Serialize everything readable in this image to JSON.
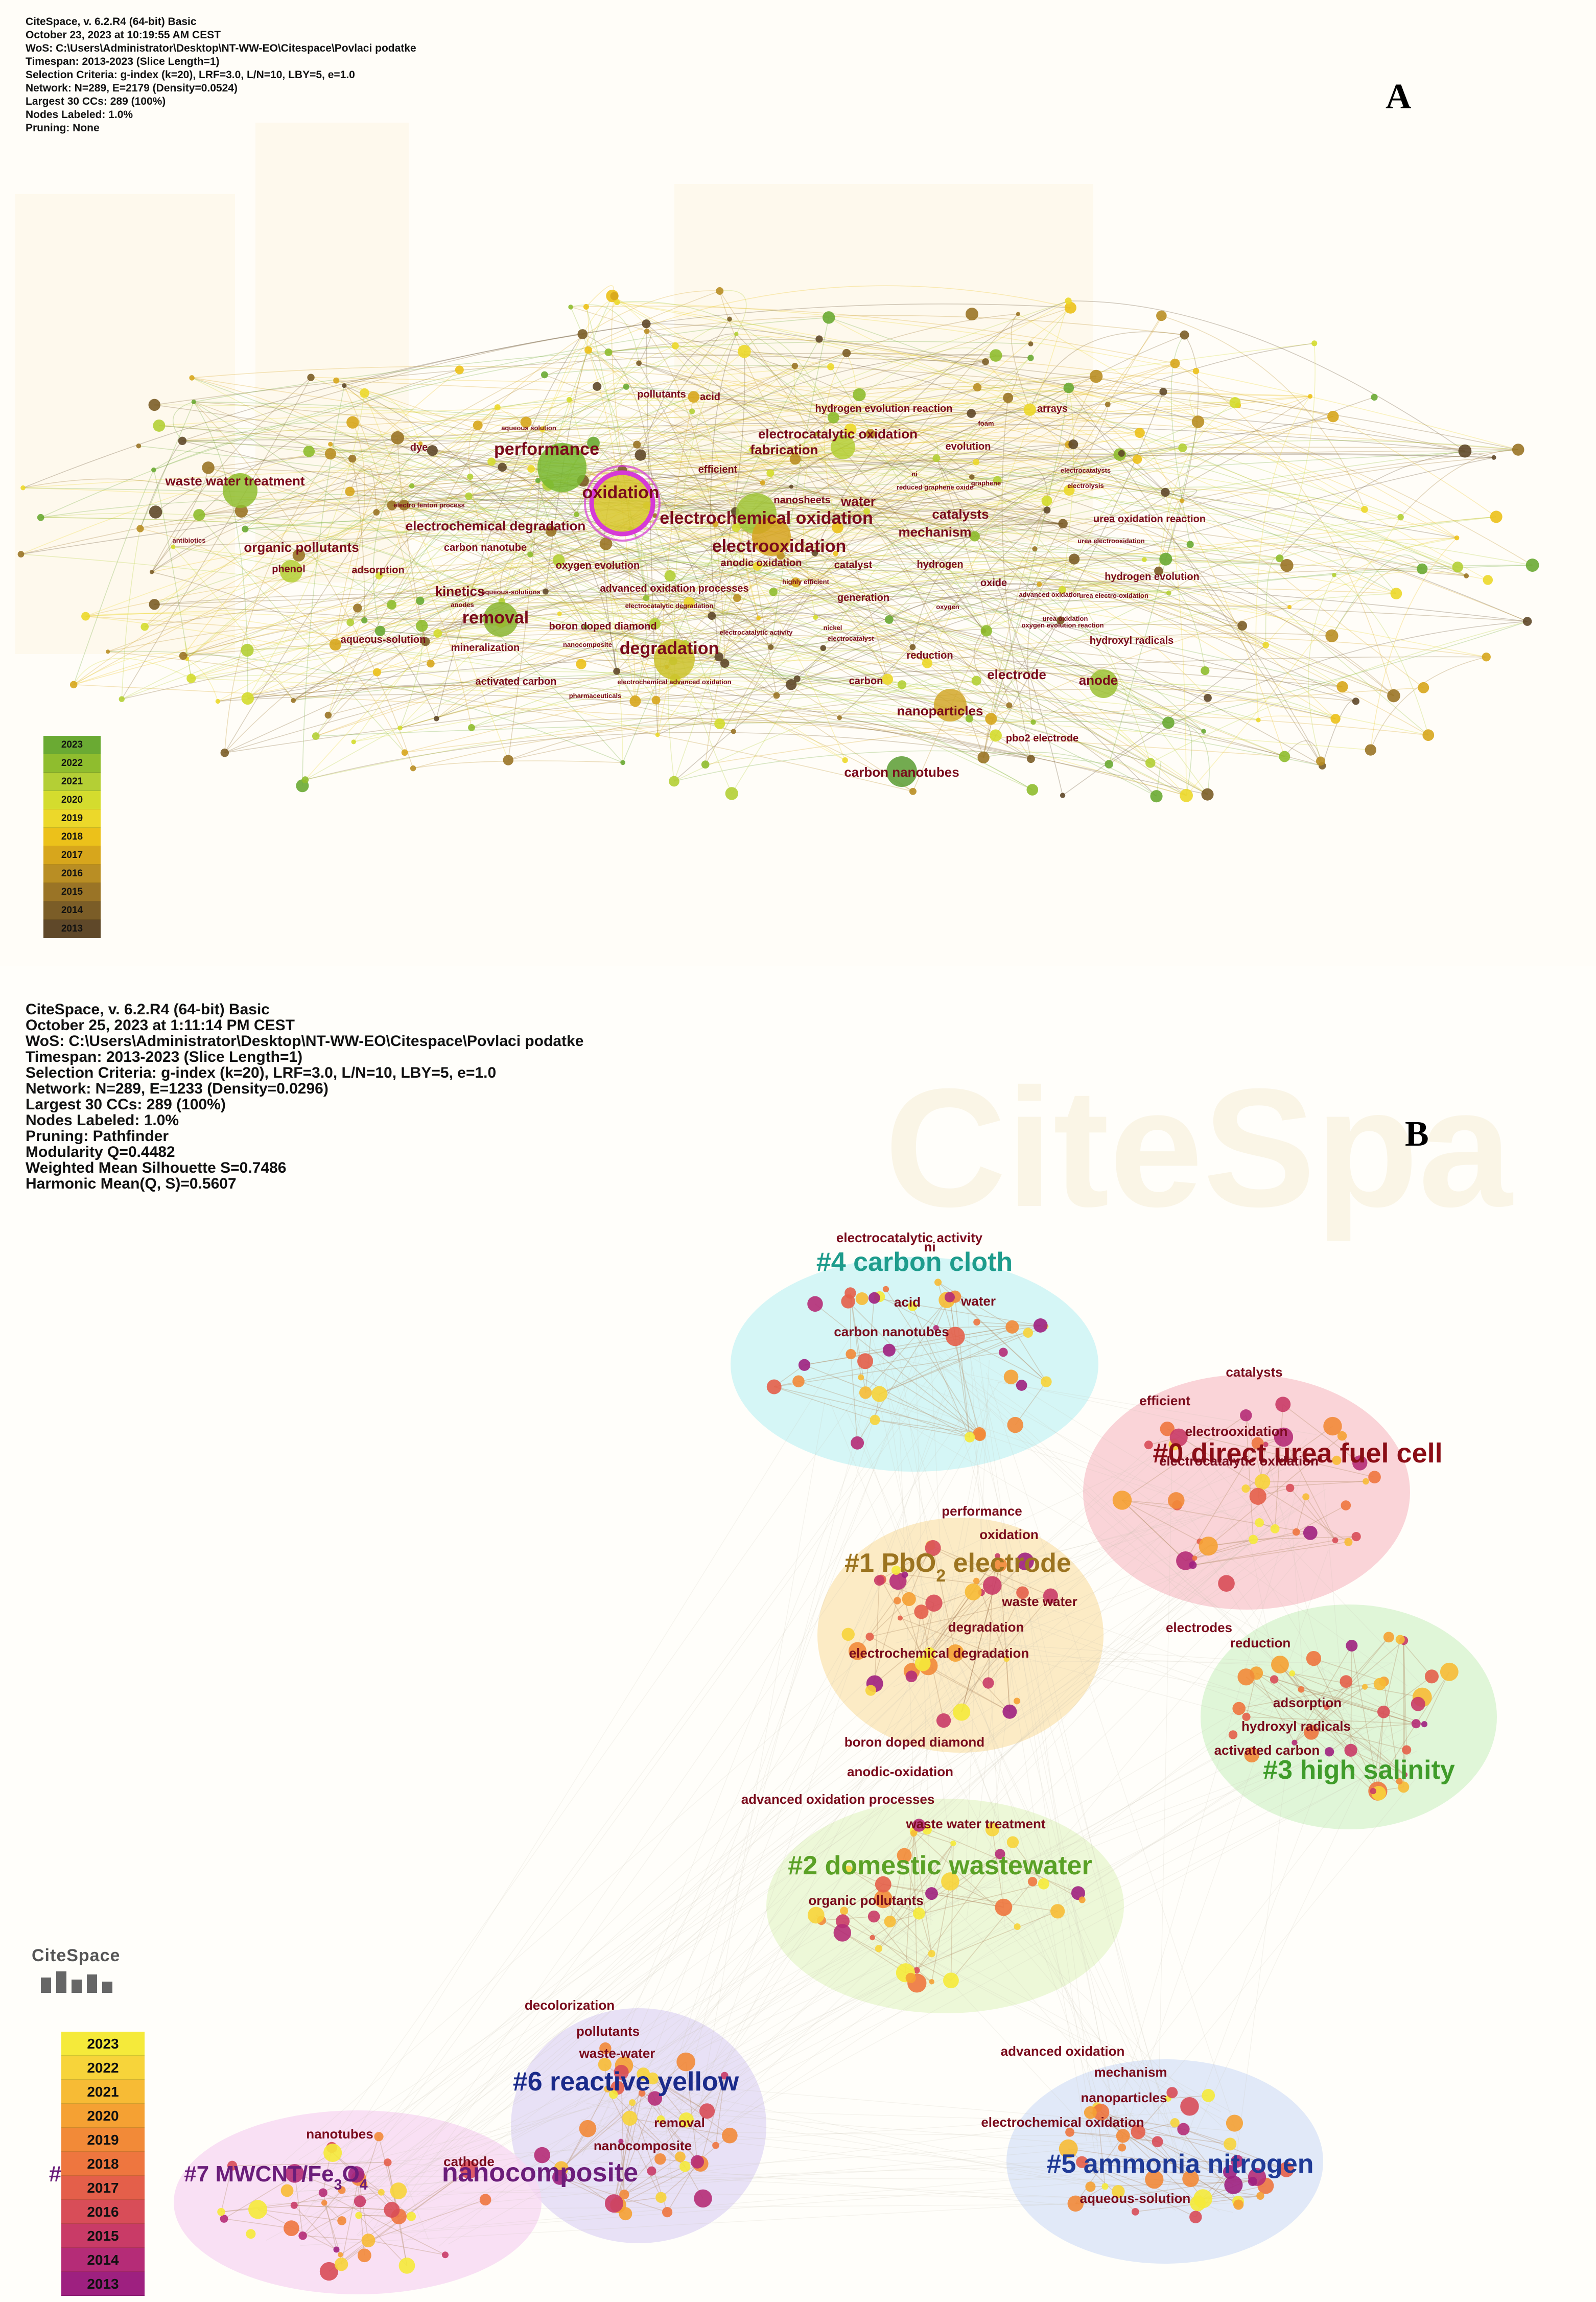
{
  "panel_a": {
    "letter": "A",
    "info_lines": [
      "CiteSpace, v. 6.2.R4 (64-bit) Basic",
      "October 23, 2023 at 10:19:55 AM CEST",
      "WoS: C:\\Users\\Administrator\\Desktop\\NT-WW-EO\\Citespace\\Povlaci podatke",
      "Timespan: 2013-2023 (Slice Length=1)",
      "Selection Criteria: g-index (k=20), LRF=3.0, L/N=10, LBY=5, e=1.0",
      "Network: N=289, E=2179 (Density=0.0524)",
      "Largest 30 CCs: 289 (100%)",
      "Nodes Labeled: 1.0%",
      "Pruning: None"
    ],
    "legend_years": [
      "2023",
      "2022",
      "2021",
      "2020",
      "2019",
      "2018",
      "2017",
      "2016",
      "2015",
      "2014",
      "2013"
    ],
    "legend_colors": [
      "#6aaa33",
      "#8fbd2e",
      "#b4cf35",
      "#d4dc2e",
      "#ecd82a",
      "#ecc11a",
      "#d7a61c",
      "#b98e24",
      "#9a7426",
      "#7b5d27",
      "#5f4829"
    ],
    "keywords": [
      {
        "text": "performance",
        "size": "l"
      },
      {
        "text": "oxidation",
        "size": "l"
      },
      {
        "text": "electrochemical oxidation",
        "size": "l"
      },
      {
        "text": "electrooxidation",
        "size": "l"
      },
      {
        "text": "removal",
        "size": "l"
      },
      {
        "text": "degradation",
        "size": "l"
      },
      {
        "text": "waste water treatment",
        "size": "m"
      },
      {
        "text": "electrochemical degradation",
        "size": "m"
      },
      {
        "text": "organic pollutants",
        "size": "m"
      },
      {
        "text": "nanoparticles",
        "size": "m"
      },
      {
        "text": "anode",
        "size": "m"
      },
      {
        "text": "carbon nanotubes",
        "size": "m"
      },
      {
        "text": "electrocatalytic oxidation",
        "size": "m"
      },
      {
        "text": "fabrication",
        "size": "m"
      },
      {
        "text": "catalysts",
        "size": "m"
      },
      {
        "text": "mechanism",
        "size": "m"
      },
      {
        "text": "kinetics",
        "size": "m"
      },
      {
        "text": "nanosheets",
        "size": "s"
      },
      {
        "text": "water",
        "size": "m"
      },
      {
        "text": "urea oxidation reaction",
        "size": "s"
      },
      {
        "text": "hydrogen evolution reaction",
        "size": "s"
      },
      {
        "text": "pollutants",
        "size": "s"
      },
      {
        "text": "acid",
        "size": "s"
      },
      {
        "text": "foam",
        "size": "xs"
      },
      {
        "text": "arrays",
        "size": "s"
      },
      {
        "text": "evolution",
        "size": "s"
      },
      {
        "text": "efficient",
        "size": "s"
      },
      {
        "text": "dye",
        "size": "s"
      },
      {
        "text": "aqueous solution",
        "size": "xs"
      },
      {
        "text": "electro fenton process",
        "size": "xs"
      },
      {
        "text": "carbon nanotube",
        "size": "s"
      },
      {
        "text": "antibiotics",
        "size": "xs"
      },
      {
        "text": "phenol",
        "size": "s"
      },
      {
        "text": "adsorption",
        "size": "s"
      },
      {
        "text": "oxygen evolution",
        "size": "s"
      },
      {
        "text": "anodic oxidation",
        "size": "s"
      },
      {
        "text": "catalyst",
        "size": "s"
      },
      {
        "text": "hydrogen",
        "size": "s"
      },
      {
        "text": "advanced oxidation processes",
        "size": "s"
      },
      {
        "text": "highly efficient",
        "size": "xs"
      },
      {
        "text": "generation",
        "size": "s"
      },
      {
        "text": "oxide",
        "size": "s"
      },
      {
        "text": "electrocatalytic degradation",
        "size": "xs"
      },
      {
        "text": "anodes",
        "size": "xs"
      },
      {
        "text": "aqueous-solutions",
        "size": "xs"
      },
      {
        "text": "aqueous-solution",
        "size": "s"
      },
      {
        "text": "boron doped diamond",
        "size": "s"
      },
      {
        "text": "mineralization",
        "size": "s"
      },
      {
        "text": "nanocomposite",
        "size": "xs"
      },
      {
        "text": "electrocatalytic activity",
        "size": "xs"
      },
      {
        "text": "electrocatalyst",
        "size": "xs"
      },
      {
        "text": "nickel",
        "size": "xs"
      },
      {
        "text": "reduction",
        "size": "s"
      },
      {
        "text": "activated carbon",
        "size": "s"
      },
      {
        "text": "electrochemical advanced oxidation",
        "size": "xs"
      },
      {
        "text": "pharmaceuticals",
        "size": "xs"
      },
      {
        "text": "carbon",
        "size": "s"
      },
      {
        "text": "electrode",
        "size": "m"
      },
      {
        "text": "hydroxyl radicals",
        "size": "s"
      },
      {
        "text": "hydrogen evolution",
        "size": "s"
      },
      {
        "text": "urea electrooxidation",
        "size": "xs"
      },
      {
        "text": "urea electro-oxidation",
        "size": "xs"
      },
      {
        "text": "urea oxidation",
        "size": "xs"
      },
      {
        "text": "oxygen evolution reaction",
        "size": "xs"
      },
      {
        "text": "advanced oxidation",
        "size": "xs"
      },
      {
        "text": "oxygen",
        "size": "xs"
      },
      {
        "text": "electrocatalysts",
        "size": "xs"
      },
      {
        "text": "electrolysis",
        "size": "xs"
      },
      {
        "text": "reduced graphene oxide",
        "size": "xs"
      },
      {
        "text": "graphene",
        "size": "xs"
      },
      {
        "text": "ni",
        "size": "xs"
      },
      {
        "text": "pbo2 electrode",
        "size": "s"
      }
    ]
  },
  "panel_b": {
    "letter": "B",
    "info_lines": [
      "CiteSpace, v. 6.2.R4 (64-bit) Basic",
      "October 25, 2023 at 1:11:14 PM CEST",
      "WoS: C:\\Users\\Administrator\\Desktop\\NT-WW-EO\\Citespace\\Povlaci podatke",
      "Timespan: 2013-2023 (Slice Length=1)",
      "Selection Criteria: g-index (k=20), LRF=3.0, L/N=10, LBY=5, e=1.0",
      "Network: N=289, E=1233 (Density=0.0296)",
      "Largest 30 CCs: 289 (100%)",
      "Nodes Labeled: 1.0%",
      "Pruning: Pathfinder",
      "Modularity Q=0.4482",
      "Weighted Mean Silhouette S=0.7486",
      "Harmonic Mean(Q, S)=0.5607"
    ],
    "logo": "CiteSpace",
    "legend_years": [
      "2023",
      "2022",
      "2021",
      "2020",
      "2019",
      "2018",
      "2017",
      "2016",
      "2015",
      "2014",
      "2013"
    ],
    "legend_colors": [
      "#f5ea3a",
      "#f7d43a",
      "#f7bb35",
      "#f5a133",
      "#f28a38",
      "#ee763f",
      "#e45f4a",
      "#d84d58",
      "#c93b67",
      "#b52c77",
      "#9e2080"
    ],
    "clusters": [
      {
        "label": "#0 direct urea fuel cell",
        "color": "#8b0d16",
        "keywords": [
          "catalysts",
          "efficient",
          "electrooxidation",
          "electrocatalytic oxidation"
        ]
      },
      {
        "label": "#1 PbO",
        "sub": "2",
        "label_rest": " electrode",
        "color": "#9c7420",
        "keywords": [
          "performance",
          "oxidation",
          "waste water",
          "degradation",
          "electrochemical degradation"
        ]
      },
      {
        "label": "#2 domestic wastewater",
        "color": "#5aa126",
        "keywords": [
          "boron doped diamond",
          "anodic-oxidation",
          "advanced oxidation processes",
          "waste water treatment",
          "organic pollutants"
        ]
      },
      {
        "label": "#3 high salinity",
        "color": "#3f9c2a",
        "keywords": [
          "electrodes",
          "reduction",
          "adsorption",
          "hydroxyl radicals",
          "activated carbon"
        ]
      },
      {
        "label": "#4 carbon cloth",
        "color": "#1e9c8c",
        "keywords": [
          "electrocatalytic activity",
          "ni",
          "acid",
          "water",
          "carbon nanotubes"
        ]
      },
      {
        "label": "#5 ammonia nitrogen",
        "color": "#1f3a96",
        "keywords": [
          "advanced oxidation",
          "mechanism",
          "nanoparticles",
          "electrochemical oxidation",
          "aqueous-solution"
        ]
      },
      {
        "label": "#6 reactive yellow",
        "color": "#1a2a8a",
        "keywords": [
          "decolorization",
          "pollutants",
          "waste-water",
          "removal",
          "nanocomposite"
        ]
      },
      {
        "label": "#7 MWCNT/Fe",
        "sub": "3",
        "label_mid": "O",
        "sub2": "4",
        "color": "#6b1d7a",
        "keywords": [
          "nanotubes",
          "cathode"
        ]
      },
      {
        "label": "nanocomposite",
        "color": "#6b1d7a",
        "keywords": []
      },
      {
        "label": "#",
        "color": "#6b1d7a",
        "keywords": []
      }
    ]
  }
}
